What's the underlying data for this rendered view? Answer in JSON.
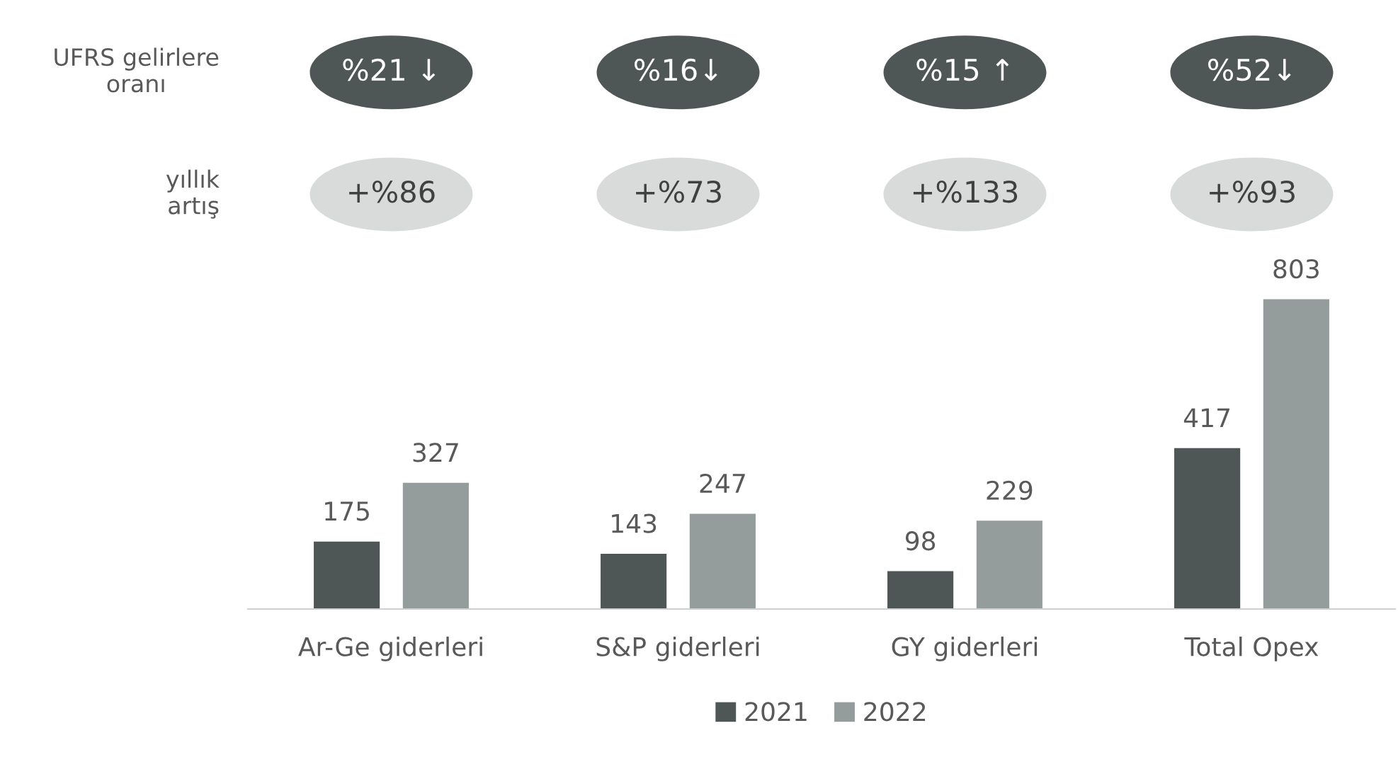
{
  "chart_data": {
    "type": "bar",
    "categories": [
      "Ar-Ge giderleri",
      "S&P giderleri",
      "GY giderleri",
      "Total Opex"
    ],
    "series": [
      {
        "name": "2021",
        "color": "#4f5656",
        "values": [
          175,
          143,
          98,
          417
        ]
      },
      {
        "name": "2022",
        "color": "#959c9c",
        "values": [
          327,
          247,
          229,
          803
        ]
      }
    ],
    "data_labels": true,
    "legend": "bottom",
    "grid": false,
    "annotations": [
      "UFRS gelirlere\noranı",
      "%21 ↓",
      "%16↓",
      "%15 ↑",
      "%52↓",
      "yıllık\nartış",
      "+%86",
      "+%73",
      "+%133",
      "+%93"
    ]
  }
}
